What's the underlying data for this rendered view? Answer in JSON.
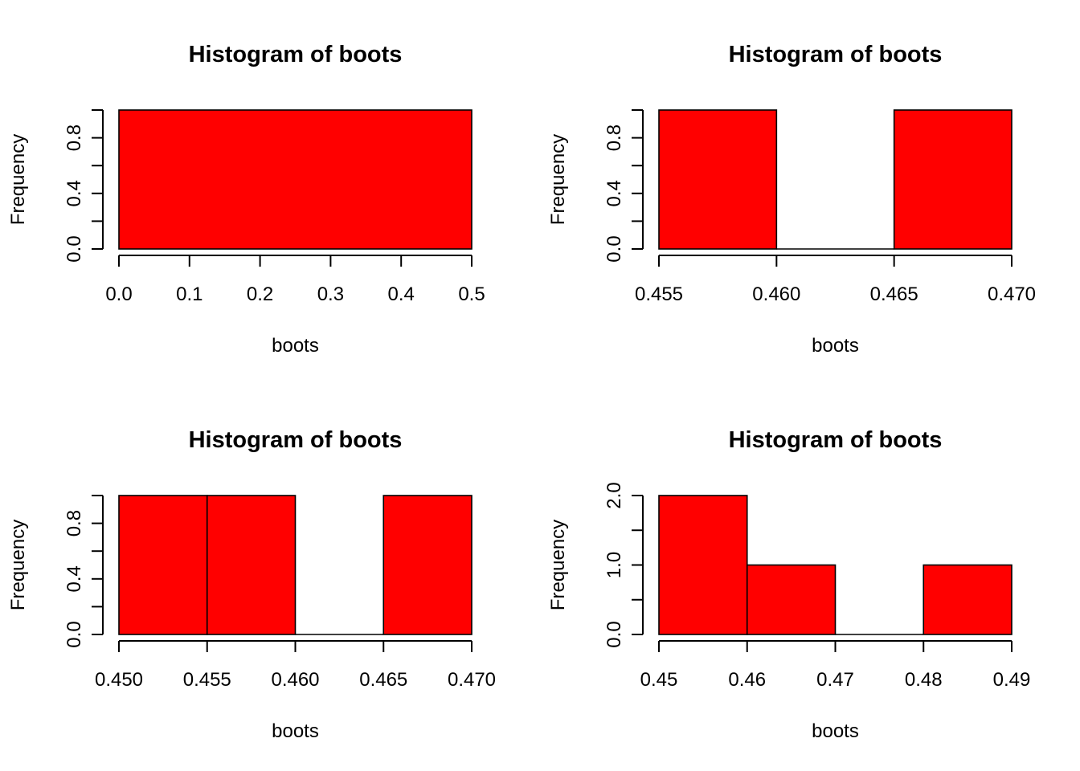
{
  "chart_data": [
    {
      "type": "bar",
      "title": "Histogram of boots",
      "xlabel": "boots",
      "ylabel": "Frequency",
      "bar_color": "#ff0000",
      "bins": [
        [
          0.0,
          0.5
        ]
      ],
      "counts": [
        1
      ],
      "xlim": [
        0.0,
        0.5
      ],
      "ylim": [
        0,
        1
      ],
      "x_ticks": [
        0.0,
        0.1,
        0.2,
        0.3,
        0.4,
        0.5
      ],
      "x_tick_labels": [
        "0.0",
        "0.1",
        "0.2",
        "0.3",
        "0.4",
        "0.5"
      ],
      "y_ticks": [
        0.0,
        0.2,
        0.4,
        0.6,
        0.8,
        1.0
      ],
      "y_tick_labels": [
        "0.0",
        "",
        "0.4",
        "",
        "0.8",
        ""
      ]
    },
    {
      "type": "bar",
      "title": "Histogram of boots",
      "xlabel": "boots",
      "ylabel": "Frequency",
      "bar_color": "#ff0000",
      "bins": [
        [
          0.455,
          0.46
        ],
        [
          0.46,
          0.465
        ],
        [
          0.465,
          0.47
        ]
      ],
      "counts": [
        1,
        0,
        1
      ],
      "xlim": [
        0.455,
        0.47
      ],
      "ylim": [
        0,
        1
      ],
      "x_ticks": [
        0.455,
        0.46,
        0.465,
        0.47
      ],
      "x_tick_labels": [
        "0.455",
        "0.460",
        "0.465",
        "0.470"
      ],
      "y_ticks": [
        0.0,
        0.2,
        0.4,
        0.6,
        0.8,
        1.0
      ],
      "y_tick_labels": [
        "0.0",
        "",
        "0.4",
        "",
        "0.8",
        ""
      ]
    },
    {
      "type": "bar",
      "title": "Histogram of boots",
      "xlabel": "boots",
      "ylabel": "Frequency",
      "bar_color": "#ff0000",
      "bins": [
        [
          0.45,
          0.455
        ],
        [
          0.455,
          0.46
        ],
        [
          0.46,
          0.465
        ],
        [
          0.465,
          0.47
        ]
      ],
      "counts": [
        1,
        1,
        0,
        1
      ],
      "xlim": [
        0.45,
        0.47
      ],
      "ylim": [
        0,
        1
      ],
      "x_ticks": [
        0.45,
        0.455,
        0.46,
        0.465,
        0.47
      ],
      "x_tick_labels": [
        "0.450",
        "0.455",
        "0.460",
        "0.465",
        "0.470"
      ],
      "y_ticks": [
        0.0,
        0.2,
        0.4,
        0.6,
        0.8,
        1.0
      ],
      "y_tick_labels": [
        "0.0",
        "",
        "0.4",
        "",
        "0.8",
        ""
      ]
    },
    {
      "type": "bar",
      "title": "Histogram of boots",
      "xlabel": "boots",
      "ylabel": "Frequency",
      "bar_color": "#ff0000",
      "bins": [
        [
          0.45,
          0.46
        ],
        [
          0.46,
          0.47
        ],
        [
          0.47,
          0.48
        ],
        [
          0.48,
          0.49
        ]
      ],
      "counts": [
        2,
        1,
        0,
        1
      ],
      "xlim": [
        0.45,
        0.49
      ],
      "ylim": [
        0,
        2
      ],
      "x_ticks": [
        0.45,
        0.46,
        0.47,
        0.48,
        0.49
      ],
      "x_tick_labels": [
        "0.45",
        "0.46",
        "0.47",
        "0.48",
        "0.49"
      ],
      "y_ticks": [
        0.0,
        0.5,
        1.0,
        1.5,
        2.0
      ],
      "y_tick_labels": [
        "0.0",
        "",
        "1.0",
        "",
        "2.0"
      ]
    }
  ]
}
